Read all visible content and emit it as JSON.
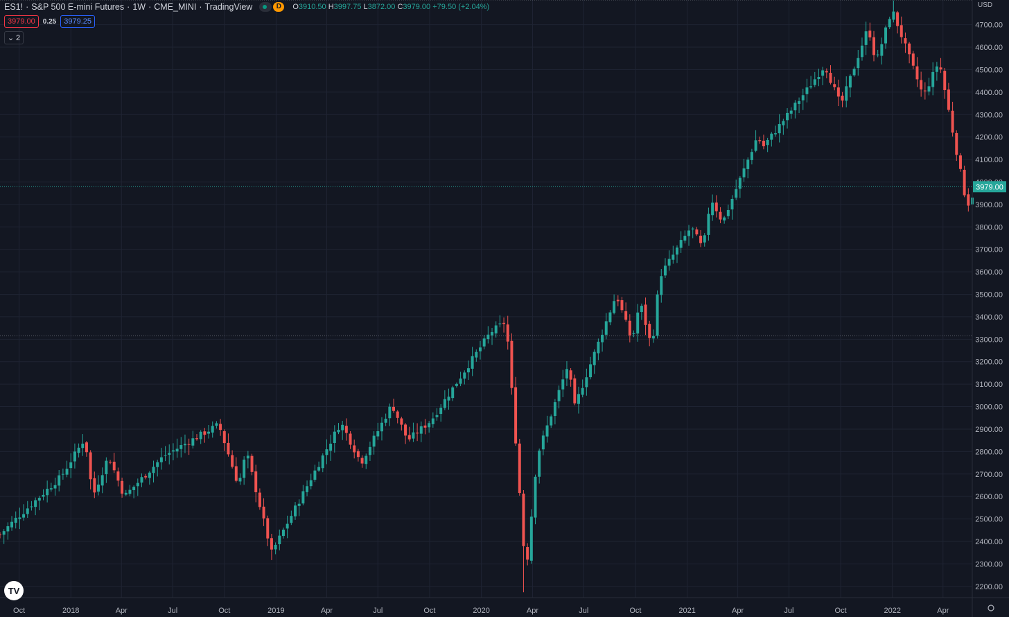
{
  "header": {
    "symbol": "ES1!",
    "description": "S&P 500 E-mini Futures",
    "interval": "1W",
    "exchange": "CME_MINI",
    "source": "TradingView",
    "d_badge": "D",
    "ohlc": {
      "o_label": "O",
      "o": "3910.50",
      "h_label": "H",
      "h": "3997.75",
      "l_label": "L",
      "l": "3872.00",
      "c_label": "C",
      "c": "3979.00",
      "change": "+79.50 (+2.04%)"
    }
  },
  "order_boxes": {
    "bid": "3979.00",
    "spread": "0.25",
    "ask": "3979.25"
  },
  "indicator_toggle": {
    "count": "2"
  },
  "logo": "TV",
  "colors": {
    "background": "#131722",
    "grid": "#1f2433",
    "up": "#26a69a",
    "down": "#ef5350",
    "axis_text": "#b2b5be",
    "price_tag": "#26a69a"
  },
  "chart_data": {
    "type": "candlestick",
    "currency": "USD",
    "interval": "weekly",
    "x_range": [
      "2017-08-28",
      "2022-05-23"
    ],
    "y_range": [
      2150,
      4810
    ],
    "y_ticks": [
      "2200.00",
      "2300.00",
      "2400.00",
      "2500.00",
      "2600.00",
      "2700.00",
      "2800.00",
      "2900.00",
      "3000.00",
      "3100.00",
      "3200.00",
      "3300.00",
      "3400.00",
      "3500.00",
      "3600.00",
      "3700.00",
      "3800.00",
      "3900.00",
      "4000.00",
      "4100.00",
      "4200.00",
      "4300.00",
      "4400.00",
      "4500.00",
      "4600.00",
      "4700.00"
    ],
    "x_ticks": [
      {
        "date": "2017-10-01",
        "label": "Oct"
      },
      {
        "date": "2018-01-01",
        "label": "2018"
      },
      {
        "date": "2018-04-01",
        "label": "Apr"
      },
      {
        "date": "2018-07-01",
        "label": "Jul"
      },
      {
        "date": "2018-10-01",
        "label": "Oct"
      },
      {
        "date": "2019-01-01",
        "label": "2019"
      },
      {
        "date": "2019-04-01",
        "label": "Apr"
      },
      {
        "date": "2019-07-01",
        "label": "Jul"
      },
      {
        "date": "2019-10-01",
        "label": "Oct"
      },
      {
        "date": "2020-01-01",
        "label": "2020"
      },
      {
        "date": "2020-04-01",
        "label": "Apr"
      },
      {
        "date": "2020-07-01",
        "label": "Jul"
      },
      {
        "date": "2020-10-01",
        "label": "Oct"
      },
      {
        "date": "2021-01-01",
        "label": "2021"
      },
      {
        "date": "2021-04-01",
        "label": "Apr"
      },
      {
        "date": "2021-07-01",
        "label": "Jul"
      },
      {
        "date": "2021-10-01",
        "label": "Oct"
      },
      {
        "date": "2022-01-01",
        "label": "2022"
      },
      {
        "date": "2022-04-01",
        "label": "Apr"
      }
    ],
    "last_price": "3979.00",
    "reference_levels": [
      4810,
      3315
    ],
    "close_path": [
      [
        "2017-08-28",
        2430
      ],
      [
        "2017-09-25",
        2500
      ],
      [
        "2017-12-15",
        2690
      ],
      [
        "2018-01-26",
        2860
      ],
      [
        "2018-02-09",
        2600
      ],
      [
        "2018-03-09",
        2780
      ],
      [
        "2018-04-06",
        2600
      ],
      [
        "2018-06-15",
        2780
      ],
      [
        "2018-09-21",
        2920
      ],
      [
        "2018-10-26",
        2650
      ],
      [
        "2018-11-09",
        2800
      ],
      [
        "2018-12-24",
        2350
      ],
      [
        "2019-04-26",
        2930
      ],
      [
        "2019-06-01",
        2750
      ],
      [
        "2019-07-26",
        3010
      ],
      [
        "2019-08-23",
        2850
      ],
      [
        "2019-10-04",
        2940
      ],
      [
        "2020-01-17",
        3330
      ],
      [
        "2020-02-14",
        3380
      ],
      [
        "2020-02-28",
        2950
      ],
      [
        "2020-03-20",
        2250
      ],
      [
        "2020-04-09",
        2780
      ],
      [
        "2020-06-05",
        3200
      ],
      [
        "2020-06-12",
        2980
      ],
      [
        "2020-08-28",
        3500
      ],
      [
        "2020-09-25",
        3290
      ],
      [
        "2020-10-09",
        3470
      ],
      [
        "2020-10-30",
        3260
      ],
      [
        "2020-11-13",
        3580
      ],
      [
        "2021-01-08",
        3800
      ],
      [
        "2021-01-29",
        3700
      ],
      [
        "2021-02-12",
        3930
      ],
      [
        "2021-03-05",
        3820
      ],
      [
        "2021-05-07",
        4210
      ],
      [
        "2021-05-14",
        4150
      ],
      [
        "2021-07-30",
        4400
      ],
      [
        "2021-09-03",
        4520
      ],
      [
        "2021-10-01",
        4340
      ],
      [
        "2021-11-19",
        4690
      ],
      [
        "2021-12-03",
        4530
      ],
      [
        "2021-12-31",
        4770
      ],
      [
        "2022-02-25",
        4380
      ],
      [
        "2022-03-25",
        4540
      ],
      [
        "2022-05-13",
        3900
      ],
      [
        "2022-05-20",
        3910
      ],
      [
        "2022-05-27",
        3979
      ]
    ],
    "markers": [
      {
        "date": "2020-03-20",
        "low": 2174
      },
      {
        "date": "2018-12-24",
        "low": 2317
      },
      {
        "date": "2022-01-03",
        "high": 4808
      },
      {
        "date": "2018-01-26",
        "high": 2878
      },
      {
        "date": "2020-02-14",
        "high": 3397
      }
    ]
  }
}
